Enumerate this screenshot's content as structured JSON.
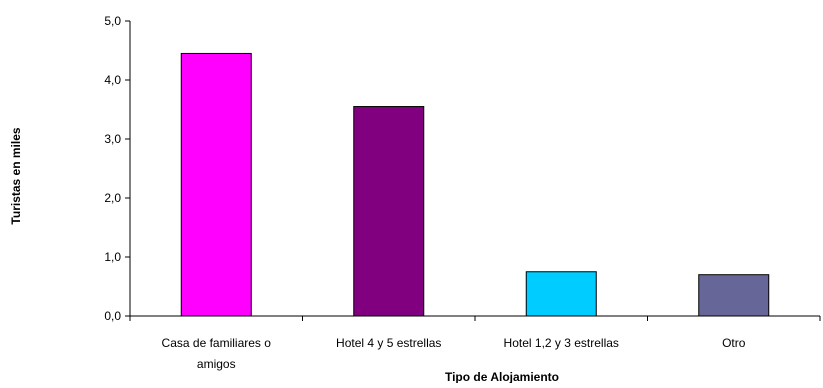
{
  "chart_data": {
    "type": "bar",
    "categories": [
      "Casa de familiares o amigos",
      "Hotel 4 y 5 estrellas",
      "Hotel 1,2 y 3 estrellas",
      "Otro"
    ],
    "category_label_lines": [
      [
        "Casa de familiares o",
        "amigos"
      ],
      [
        "Hotel 4 y 5 estrellas"
      ],
      [
        "Hotel 1,2 y 3 estrellas"
      ],
      [
        "Otro"
      ]
    ],
    "values": [
      4.45,
      3.55,
      0.75,
      0.7
    ],
    "bar_colors": [
      "#ff00ff",
      "#800080",
      "#00ccff",
      "#666699"
    ],
    "ylabel": "Turistas en miles",
    "xlabel": "Tipo de Alojamiento",
    "ylim": [
      0,
      5
    ],
    "yticks": [
      0,
      1,
      2,
      3,
      4,
      5
    ],
    "ytick_labels": [
      "0,0",
      "1,0",
      "2,0",
      "3,0",
      "4,0",
      "5,0"
    ],
    "grid": false,
    "legend": false
  }
}
